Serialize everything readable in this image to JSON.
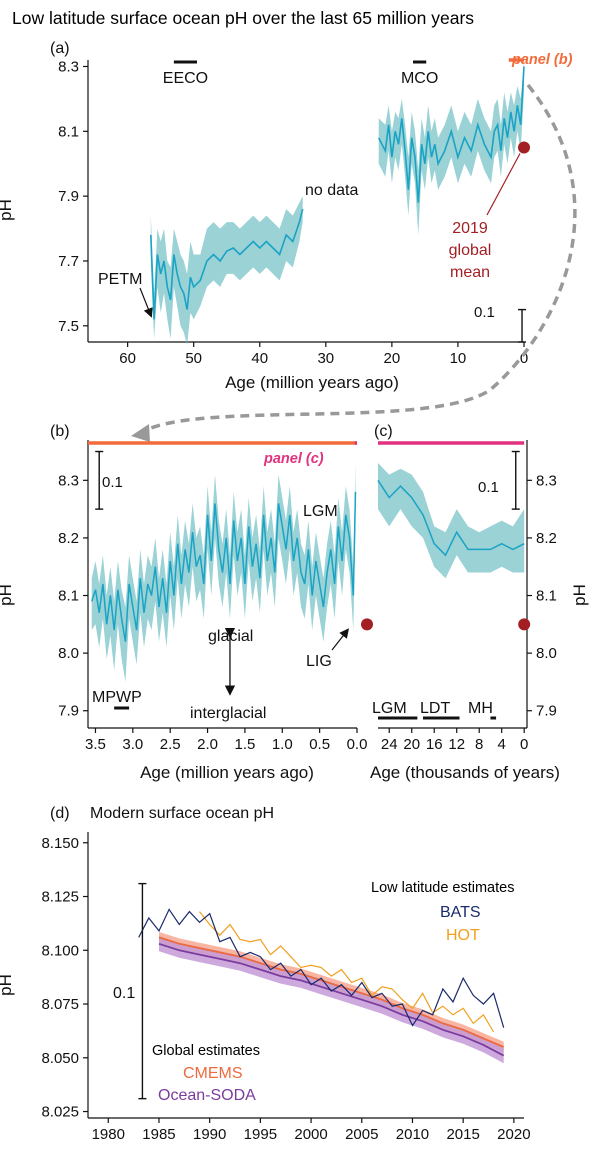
{
  "title": "Low latitude surface ocean pH over the last 65 million years",
  "colors": {
    "series": "#1aa3c4",
    "band": "#78c3c8",
    "modern_dot": "#a31f24",
    "panel_b_marker": "#f26b3a",
    "panel_c_marker": "#e0327f",
    "arrow": "#999999",
    "bats": "#1a2a6c",
    "hot": "#f0a020",
    "cmems": "#ee6a3e",
    "cmems_band": "#f7a890",
    "soda": "#7b3c9e",
    "soda_band": "#c49ad8"
  },
  "chart_data": [
    {
      "id": "a",
      "type": "line",
      "panel_label": "(a)",
      "xlabel": "Age (million years ago)",
      "ylabel": "pH",
      "xlim": [
        66,
        0
      ],
      "ylim": [
        7.45,
        8.32
      ],
      "x_ticks": [
        60,
        50,
        40,
        30,
        20,
        10,
        0
      ],
      "y_ticks": [
        7.5,
        7.7,
        7.9,
        8.1,
        8.3
      ],
      "x_tick_labels": [
        "60",
        "50",
        "40",
        "30",
        "20",
        "10",
        "0"
      ],
      "y_tick_labels": [
        "7.5",
        "7.7",
        "7.9",
        "8.1",
        "8.3"
      ],
      "segments": [
        {
          "x": [
            56.5,
            56.0,
            55.5,
            55.0,
            54.5,
            54.0,
            53.5,
            53.0,
            52.5,
            52.0,
            51.5,
            51.0,
            50.5,
            50.0,
            49.0,
            48.0,
            47.0,
            46.0,
            45.0,
            44.0,
            43.0,
            42.0,
            41.0,
            40.0,
            39.0,
            38.0,
            37.0,
            36.0,
            35.0,
            34.0,
            33.5
          ],
          "y": [
            7.78,
            7.52,
            7.72,
            7.66,
            7.7,
            7.62,
            7.58,
            7.72,
            7.66,
            7.62,
            7.6,
            7.55,
            7.65,
            7.62,
            7.64,
            7.7,
            7.72,
            7.7,
            7.73,
            7.74,
            7.72,
            7.74,
            7.76,
            7.74,
            7.76,
            7.74,
            7.72,
            7.78,
            7.76,
            7.82,
            7.86
          ],
          "upper": [
            7.84,
            7.6,
            7.8,
            7.76,
            7.8,
            7.7,
            7.68,
            7.8,
            7.76,
            7.72,
            7.7,
            7.66,
            7.76,
            7.72,
            7.72,
            7.8,
            7.82,
            7.8,
            7.82,
            7.82,
            7.8,
            7.82,
            7.84,
            7.82,
            7.84,
            7.82,
            7.8,
            7.86,
            7.84,
            7.88,
            7.9
          ],
          "lower": [
            7.7,
            7.46,
            7.62,
            7.54,
            7.6,
            7.52,
            7.46,
            7.62,
            7.56,
            7.5,
            7.48,
            7.44,
            7.54,
            7.52,
            7.56,
            7.62,
            7.64,
            7.62,
            7.66,
            7.66,
            7.64,
            7.66,
            7.68,
            7.66,
            7.68,
            7.66,
            7.64,
            7.7,
            7.68,
            7.76,
            7.82
          ]
        },
        {
          "x": [
            22.0,
            21.0,
            20.5,
            20.0,
            19.5,
            19.0,
            18.5,
            18.0,
            17.5,
            17.0,
            16.5,
            16.0,
            15.5,
            15.0,
            14.5,
            14.0,
            13.5,
            13.0,
            12.0,
            11.0,
            10.0,
            9.0,
            8.0,
            7.0,
            6.0,
            5.0,
            4.5,
            4.0,
            3.5,
            3.0,
            2.5,
            2.0,
            1.5,
            1.0,
            0.5,
            0.0
          ],
          "y": [
            8.08,
            8.04,
            8.12,
            8.02,
            8.1,
            8.06,
            8.14,
            8.04,
            7.92,
            8.08,
            8.02,
            7.88,
            8.06,
            8.0,
            8.1,
            8.02,
            8.06,
            8.0,
            8.04,
            8.1,
            8.02,
            8.08,
            8.04,
            8.12,
            8.06,
            8.02,
            8.1,
            8.12,
            8.04,
            8.14,
            8.08,
            8.16,
            8.1,
            8.18,
            8.12,
            8.3
          ],
          "upper": [
            8.14,
            8.12,
            8.18,
            8.1,
            8.16,
            8.14,
            8.2,
            8.12,
            8.02,
            8.16,
            8.1,
            7.98,
            8.14,
            8.08,
            8.18,
            8.1,
            8.14,
            8.08,
            8.12,
            8.18,
            8.1,
            8.16,
            8.12,
            8.2,
            8.14,
            8.1,
            8.18,
            8.2,
            8.12,
            8.22,
            8.16,
            8.22,
            8.18,
            8.24,
            8.2,
            8.32
          ],
          "lower": [
            8.0,
            7.96,
            8.04,
            7.94,
            8.02,
            7.98,
            8.06,
            7.96,
            7.84,
            8.0,
            7.94,
            7.78,
            7.98,
            7.92,
            8.02,
            7.94,
            7.98,
            7.92,
            7.96,
            8.02,
            7.94,
            8.0,
            7.96,
            8.04,
            7.98,
            7.94,
            8.02,
            8.04,
            7.96,
            8.06,
            8.0,
            8.08,
            8.02,
            8.1,
            8.04,
            8.22
          ]
        }
      ],
      "modern_point": {
        "x": 0,
        "y": 8.05
      },
      "annotations": {
        "eeco": "EECO",
        "mco": "MCO",
        "no_data": "no data",
        "petm": "PETM",
        "modern_1": "2019",
        "modern_2": "global",
        "modern_3": "mean",
        "scale": "0.1",
        "panel_b": "panel (b)"
      },
      "eeco_bar": [
        53,
        49.5
      ],
      "mco_bar": [
        16.8,
        14.8
      ],
      "petm_at": {
        "x": 56.0,
        "y": 7.52
      },
      "scale_bar": {
        "x": 0.3,
        "y0": 7.45,
        "y1": 7.55
      },
      "panel_b_bar": [
        2.3,
        0
      ]
    },
    {
      "id": "b",
      "type": "line",
      "panel_label": "(b)",
      "xlabel": "Age (million years ago)",
      "ylabel": "pH",
      "xlim": [
        3.6,
        0
      ],
      "ylim": [
        7.87,
        8.37
      ],
      "x_ticks": [
        3.5,
        3.0,
        2.5,
        2.0,
        1.5,
        1.0,
        0.5,
        0.0
      ],
      "y_ticks": [
        7.9,
        8.0,
        8.1,
        8.2,
        8.3
      ],
      "x_tick_labels": [
        "3.5",
        "3.0",
        "2.5",
        "2.0",
        "1.5",
        "1.0",
        "0.5",
        "0.0"
      ],
      "y_tick_labels": [
        "7.9",
        "8.0",
        "8.1",
        "8.2",
        "8.3"
      ],
      "x": [
        3.55,
        3.5,
        3.45,
        3.4,
        3.35,
        3.3,
        3.25,
        3.2,
        3.15,
        3.1,
        3.05,
        3.0,
        2.95,
        2.9,
        2.85,
        2.8,
        2.75,
        2.7,
        2.65,
        2.6,
        2.55,
        2.5,
        2.45,
        2.4,
        2.35,
        2.3,
        2.25,
        2.2,
        2.15,
        2.1,
        2.05,
        2.0,
        1.95,
        1.9,
        1.85,
        1.8,
        1.75,
        1.7,
        1.65,
        1.6,
        1.55,
        1.5,
        1.45,
        1.4,
        1.35,
        1.3,
        1.25,
        1.2,
        1.15,
        1.1,
        1.05,
        1.0,
        0.95,
        0.9,
        0.85,
        0.8,
        0.75,
        0.7,
        0.65,
        0.6,
        0.55,
        0.5,
        0.45,
        0.4,
        0.35,
        0.3,
        0.25,
        0.2,
        0.15,
        0.1,
        0.05,
        0.02
      ],
      "y": [
        8.09,
        8.11,
        8.07,
        8.12,
        8.05,
        8.1,
        8.04,
        8.11,
        8.06,
        8.02,
        8.12,
        8.08,
        8.04,
        8.13,
        8.07,
        8.12,
        8.1,
        8.15,
        8.08,
        8.13,
        8.07,
        8.16,
        8.1,
        8.19,
        8.12,
        8.18,
        8.14,
        8.21,
        8.15,
        8.17,
        8.12,
        8.24,
        8.16,
        8.26,
        8.18,
        8.14,
        8.2,
        8.12,
        8.23,
        8.16,
        8.2,
        8.12,
        8.22,
        8.15,
        8.19,
        8.13,
        8.24,
        8.16,
        8.2,
        8.14,
        8.26,
        8.22,
        8.18,
        8.24,
        8.16,
        8.2,
        8.14,
        8.12,
        8.18,
        8.1,
        8.16,
        8.12,
        8.08,
        8.14,
        8.18,
        8.12,
        8.22,
        8.16,
        8.24,
        8.2,
        8.1,
        8.28
      ],
      "upper": [
        8.13,
        8.16,
        8.12,
        8.17,
        8.1,
        8.15,
        8.09,
        8.16,
        8.11,
        8.08,
        8.17,
        8.13,
        8.09,
        8.18,
        8.12,
        8.17,
        8.15,
        8.2,
        8.13,
        8.18,
        8.12,
        8.21,
        8.15,
        8.24,
        8.17,
        8.23,
        8.19,
        8.26,
        8.2,
        8.22,
        8.17,
        8.29,
        8.21,
        8.31,
        8.23,
        8.19,
        8.25,
        8.17,
        8.28,
        8.21,
        8.25,
        8.17,
        8.27,
        8.2,
        8.24,
        8.18,
        8.29,
        8.21,
        8.25,
        8.19,
        8.31,
        8.27,
        8.23,
        8.29,
        8.21,
        8.25,
        8.19,
        8.17,
        8.23,
        8.15,
        8.21,
        8.17,
        8.13,
        8.19,
        8.23,
        8.17,
        8.27,
        8.21,
        8.29,
        8.25,
        8.15,
        8.33
      ],
      "lower": [
        8.04,
        8.05,
        8.01,
        8.06,
        7.99,
        8.03,
        7.97,
        8.05,
        7.99,
        7.95,
        8.06,
        8.02,
        7.98,
        8.07,
        8.01,
        8.06,
        8.04,
        8.09,
        8.02,
        8.07,
        8.01,
        8.1,
        8.04,
        8.13,
        8.06,
        8.12,
        8.08,
        8.15,
        8.09,
        8.11,
        8.06,
        8.18,
        8.1,
        8.2,
        8.12,
        8.08,
        8.14,
        8.06,
        8.17,
        8.1,
        8.14,
        8.06,
        8.16,
        8.09,
        8.13,
        8.07,
        8.18,
        8.1,
        8.14,
        8.08,
        8.2,
        8.16,
        8.12,
        8.18,
        8.1,
        8.14,
        8.08,
        8.06,
        8.12,
        8.04,
        8.1,
        8.06,
        8.02,
        8.08,
        8.12,
        8.06,
        8.16,
        8.1,
        8.18,
        8.14,
        8.04,
        8.22
      ],
      "modern_point": {
        "x": 0,
        "y": 8.05
      },
      "annotations": {
        "scale": "0.1",
        "panel_c": "panel (c)",
        "lgm": "LGM",
        "glacial": "glacial",
        "interglacial": "interglacial",
        "lig": "LIG",
        "mpwp": "MPWP"
      },
      "top_bar": [
        3.6,
        0
      ],
      "panel_c_bar": [
        0.03,
        0
      ],
      "mpwp_bar": [
        3.25,
        3.05
      ],
      "scale_bar": {
        "x": 3.45,
        "y0": 8.25,
        "y1": 8.35
      },
      "glacial_arrow": {
        "x": 1.7,
        "y0": 7.935,
        "y1": 8.035
      },
      "lig_at": {
        "x": 0.12,
        "y": 8.04
      }
    },
    {
      "id": "c",
      "type": "line",
      "panel_label": "(c)",
      "xlabel": "Age (thousands of years)",
      "ylabel": "pH",
      "xlim": [
        26,
        -0.5
      ],
      "ylim": [
        7.87,
        8.37
      ],
      "x_ticks": [
        24,
        20,
        16,
        12,
        8,
        4,
        0
      ],
      "y_ticks": [
        7.9,
        8.0,
        8.1,
        8.2,
        8.3
      ],
      "x_tick_labels": [
        "24",
        "20",
        "16",
        "12",
        "8",
        "4",
        "0"
      ],
      "y_tick_labels": [
        "7.9",
        "8.0",
        "8.1",
        "8.2",
        "8.3"
      ],
      "x": [
        26,
        24,
        22,
        20,
        18,
        16,
        14,
        12,
        10,
        8,
        6,
        4,
        2,
        0
      ],
      "y": [
        8.3,
        8.27,
        8.29,
        8.27,
        8.24,
        8.19,
        8.17,
        8.21,
        8.18,
        8.18,
        8.18,
        8.19,
        8.18,
        8.19
      ],
      "upper": [
        8.33,
        8.31,
        8.32,
        8.31,
        8.28,
        8.22,
        8.21,
        8.25,
        8.22,
        8.21,
        8.22,
        8.23,
        8.22,
        8.25
      ],
      "lower": [
        8.25,
        8.22,
        8.25,
        8.22,
        8.2,
        8.15,
        8.13,
        8.17,
        8.14,
        8.14,
        8.14,
        8.15,
        8.14,
        8.14
      ],
      "modern_point": {
        "x": 0,
        "y": 8.05
      },
      "annotations": {
        "scale": "0.1",
        "lgm": "LGM",
        "ldt": "LDT",
        "mh": "MH"
      },
      "top_bar": [
        26,
        0
      ],
      "lgm_bar": [
        26,
        19
      ],
      "ldt_bar": [
        18,
        11.5
      ],
      "mh_bar": [
        6,
        5
      ],
      "scale_bar": {
        "x": 1.5,
        "y0": 8.25,
        "y1": 8.35
      }
    },
    {
      "id": "d",
      "type": "line",
      "panel_label": "(d)",
      "title": "Modern surface ocean pH",
      "ylabel": "pH",
      "xlim": [
        1978,
        2021
      ],
      "ylim": [
        8.022,
        8.155
      ],
      "x_ticks": [
        1980,
        1985,
        1990,
        1995,
        2000,
        2005,
        2010,
        2015,
        2020
      ],
      "y_ticks": [
        8.025,
        8.05,
        8.075,
        8.1,
        8.125,
        8.15
      ],
      "x_tick_labels": [
        "1980",
        "1985",
        "1990",
        "1995",
        "2000",
        "2005",
        "2010",
        "2015",
        "2020"
      ],
      "y_tick_labels": [
        "8.025",
        "8.050",
        "8.075",
        "8.100",
        "8.125",
        "8.150"
      ],
      "legend": {
        "low_lat_title": "Low latitude estimates",
        "global_title": "Global estimates"
      },
      "scale_bar": {
        "label": "0.1",
        "x": 1981,
        "y0": 8.031,
        "y1": 8.131
      },
      "series": [
        {
          "name": "BATS",
          "x": [
            1983,
            1984,
            1985,
            1986,
            1987,
            1988,
            1989,
            1990,
            1991,
            1992,
            1993,
            1994,
            1995,
            1996,
            1997,
            1998,
            1999,
            2000,
            2001,
            2002,
            2003,
            2004,
            2005,
            2006,
            2007,
            2008,
            2009,
            2010,
            2011,
            2012,
            2013,
            2014,
            2015,
            2016,
            2017,
            2018,
            2019
          ],
          "y": [
            8.106,
            8.115,
            8.109,
            8.119,
            8.112,
            8.118,
            8.113,
            8.117,
            8.104,
            8.106,
            8.097,
            8.099,
            8.097,
            8.091,
            8.094,
            8.088,
            8.091,
            8.084,
            8.087,
            8.081,
            8.084,
            8.079,
            8.085,
            8.078,
            8.08,
            8.074,
            8.075,
            8.065,
            8.072,
            8.07,
            8.082,
            8.076,
            8.087,
            8.079,
            8.075,
            8.08,
            8.064
          ]
        },
        {
          "name": "HOT",
          "x": [
            1989,
            1990,
            1991,
            1992,
            1993,
            1994,
            1995,
            1996,
            1997,
            1998,
            1999,
            2000,
            2001,
            2002,
            2003,
            2004,
            2005,
            2006,
            2007,
            2008,
            2009,
            2010,
            2011,
            2012,
            2013,
            2014,
            2015,
            2016,
            2017,
            2018
          ],
          "y": [
            8.118,
            8.112,
            8.107,
            8.112,
            8.105,
            8.104,
            8.105,
            8.098,
            8.102,
            8.097,
            8.092,
            8.093,
            8.092,
            8.088,
            8.091,
            8.085,
            8.087,
            8.079,
            8.083,
            8.082,
            8.077,
            8.073,
            8.08,
            8.071,
            8.074,
            8.07,
            8.073,
            8.066,
            8.07,
            8.062
          ]
        },
        {
          "name": "CMEMS",
          "x": [
            1985,
            1987,
            1989,
            1991,
            1993,
            1995,
            1997,
            1999,
            2001,
            2003,
            2005,
            2007,
            2009,
            2011,
            2013,
            2015,
            2017,
            2019
          ],
          "y": [
            8.106,
            8.103,
            8.101,
            8.099,
            8.097,
            8.094,
            8.091,
            8.089,
            8.086,
            8.083,
            8.08,
            8.077,
            8.073,
            8.07,
            8.066,
            8.063,
            8.059,
            8.055
          ],
          "band": 0.0025
        },
        {
          "name": "Ocean-SODA",
          "x": [
            1985,
            1987,
            1989,
            1991,
            1993,
            1995,
            1997,
            1999,
            2001,
            2003,
            2005,
            2007,
            2009,
            2011,
            2013,
            2015,
            2017,
            2019
          ],
          "y": [
            8.103,
            8.1,
            8.098,
            8.096,
            8.094,
            8.091,
            8.088,
            8.086,
            8.083,
            8.08,
            8.077,
            8.074,
            8.07,
            8.067,
            8.063,
            8.06,
            8.056,
            8.051
          ],
          "band": 0.0035
        }
      ]
    }
  ]
}
